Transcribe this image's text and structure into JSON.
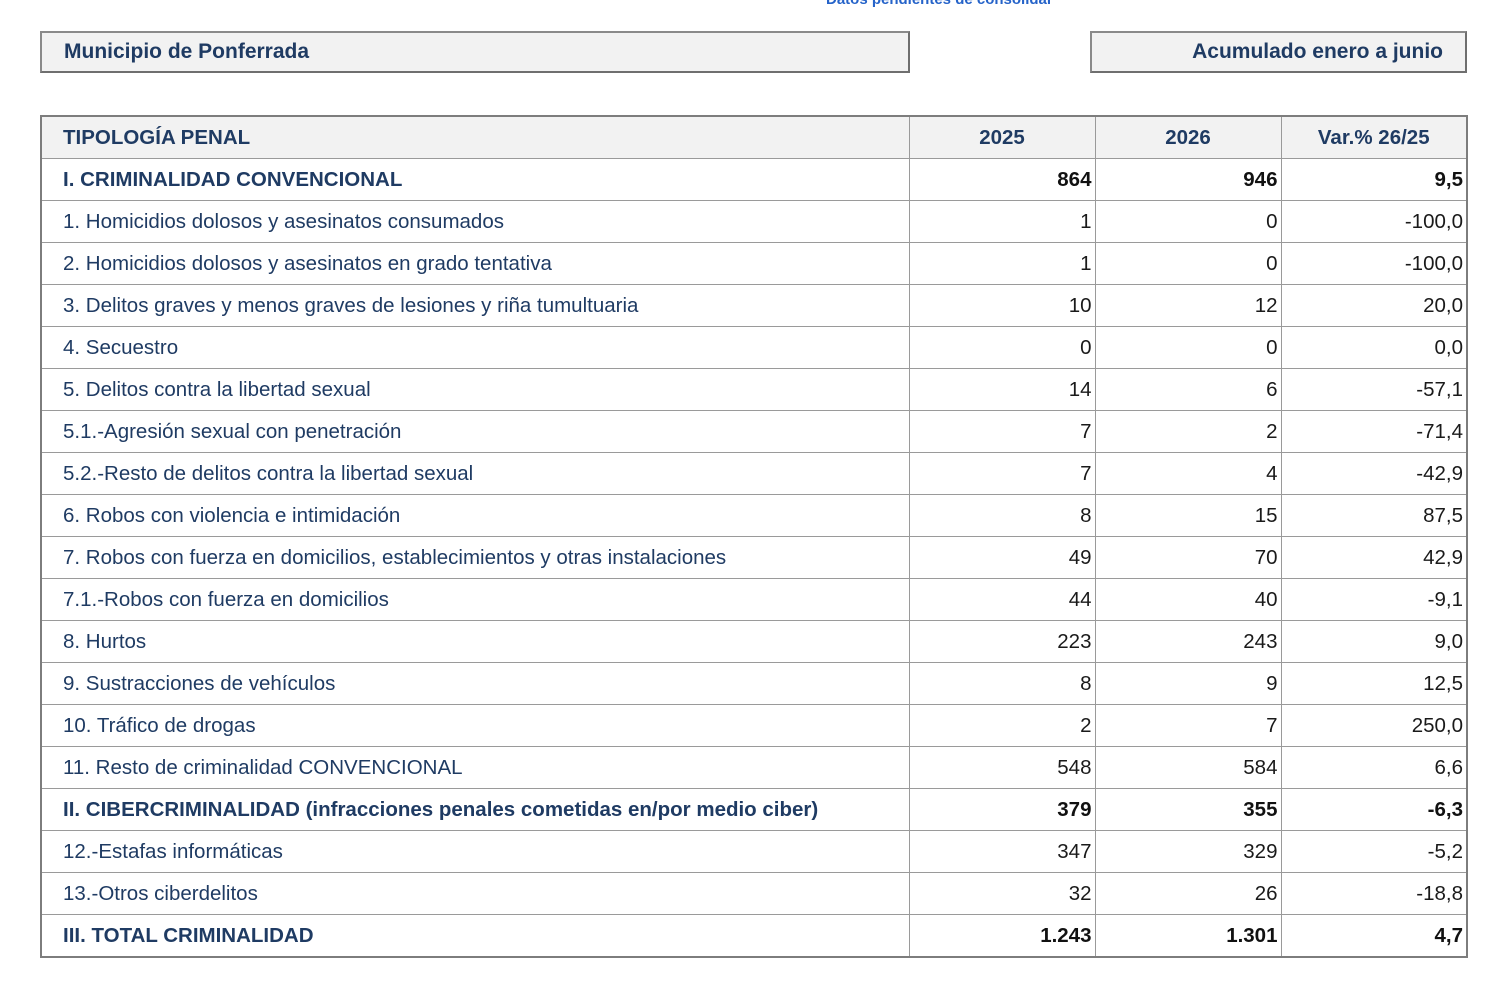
{
  "top_note": "Datos pendientes de consolidar",
  "header": {
    "municipality": "Municipio de Ponferrada",
    "period": "Acumulado enero a junio"
  },
  "table": {
    "columns": [
      "TIPOLOGÍA PENAL",
      "2025",
      "2026",
      "Var.% 26/25"
    ],
    "rows": [
      {
        "label": "I. CRIMINALIDAD CONVENCIONAL",
        "y2025": "864",
        "y2026": "946",
        "var": "9,5",
        "bold": true
      },
      {
        "label": "1. Homicidios dolosos y asesinatos consumados",
        "y2025": "1",
        "y2026": "0",
        "var": "-100,0",
        "bold": false
      },
      {
        "label": "2. Homicidios dolosos y asesinatos en grado tentativa",
        "y2025": "1",
        "y2026": "0",
        "var": "-100,0",
        "bold": false
      },
      {
        "label": "3. Delitos graves y menos graves de lesiones y riña tumultuaria",
        "y2025": "10",
        "y2026": "12",
        "var": "20,0",
        "bold": false
      },
      {
        "label": "4. Secuestro",
        "y2025": "0",
        "y2026": "0",
        "var": "0,0",
        "bold": false
      },
      {
        "label": "5. Delitos contra la libertad sexual",
        "y2025": "14",
        "y2026": "6",
        "var": "-57,1",
        "bold": false
      },
      {
        "label": "5.1.-Agresión sexual con penetración",
        "y2025": "7",
        "y2026": "2",
        "var": "-71,4",
        "bold": false
      },
      {
        "label": "5.2.-Resto de delitos contra la libertad sexual",
        "y2025": "7",
        "y2026": "4",
        "var": "-42,9",
        "bold": false
      },
      {
        "label": "6. Robos con violencia e intimidación",
        "y2025": "8",
        "y2026": "15",
        "var": "87,5",
        "bold": false
      },
      {
        "label": "7. Robos con fuerza en domicilios, establecimientos y otras instalaciones",
        "y2025": "49",
        "y2026": "70",
        "var": "42,9",
        "bold": false
      },
      {
        "label": "7.1.-Robos con fuerza en domicilios",
        "y2025": "44",
        "y2026": "40",
        "var": "-9,1",
        "bold": false
      },
      {
        "label": "8. Hurtos",
        "y2025": "223",
        "y2026": "243",
        "var": "9,0",
        "bold": false
      },
      {
        "label": "9. Sustracciones de vehículos",
        "y2025": "8",
        "y2026": "9",
        "var": "12,5",
        "bold": false
      },
      {
        "label": "10. Tráfico de drogas",
        "y2025": "2",
        "y2026": "7",
        "var": "250,0",
        "bold": false
      },
      {
        "label": "11. Resto de criminalidad CONVENCIONAL",
        "y2025": "548",
        "y2026": "584",
        "var": "6,6",
        "bold": false
      },
      {
        "label": "II. CIBERCRIMINALIDAD (infracciones penales cometidas en/por medio ciber)",
        "y2025": "379",
        "y2026": "355",
        "var": "-6,3",
        "bold": true
      },
      {
        "label": "12.-Estafas informáticas",
        "y2025": "347",
        "y2026": "329",
        "var": "-5,2",
        "bold": false
      },
      {
        "label": "13.-Otros ciberdelitos",
        "y2025": "32",
        "y2026": "26",
        "var": "-18,8",
        "bold": false
      },
      {
        "label": "III. TOTAL CRIMINALIDAD",
        "y2025": "1.243",
        "y2026": "1.301",
        "var": "4,7",
        "bold": true
      }
    ]
  },
  "colors": {
    "label_text": "#1f3b63",
    "number_text": "#1a1a1a",
    "header_bg": "#f2f2f2",
    "note_text": "#2563c9"
  }
}
